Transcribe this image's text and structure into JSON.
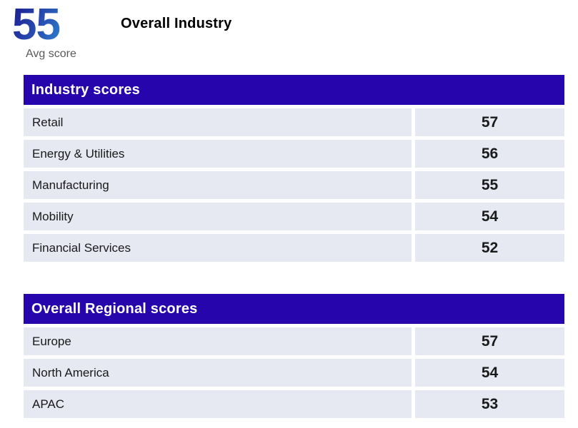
{
  "kpi": {
    "value": "55",
    "label": "Avg score"
  },
  "page_title": "Overall Industry",
  "tables": [
    {
      "header": "Industry scores",
      "rows": [
        {
          "label": "Retail",
          "score": "57"
        },
        {
          "label": "Energy & Utilities",
          "score": "56"
        },
        {
          "label": "Manufacturing",
          "score": "55"
        },
        {
          "label": "Mobility",
          "score": "54"
        },
        {
          "label": "Financial Services",
          "score": "52"
        }
      ]
    },
    {
      "header": "Overall Regional scores",
      "rows": [
        {
          "label": "Europe",
          "score": "57"
        },
        {
          "label": "North America",
          "score": "54"
        },
        {
          "label": "APAC",
          "score": "53"
        }
      ]
    }
  ],
  "colors": {
    "header_bg": "#2605AC",
    "row_bg": "#E6E8F2",
    "kpi_gradient_start": "#1F2496",
    "kpi_gradient_end": "#2F9DDC",
    "muted_text": "#595959"
  }
}
